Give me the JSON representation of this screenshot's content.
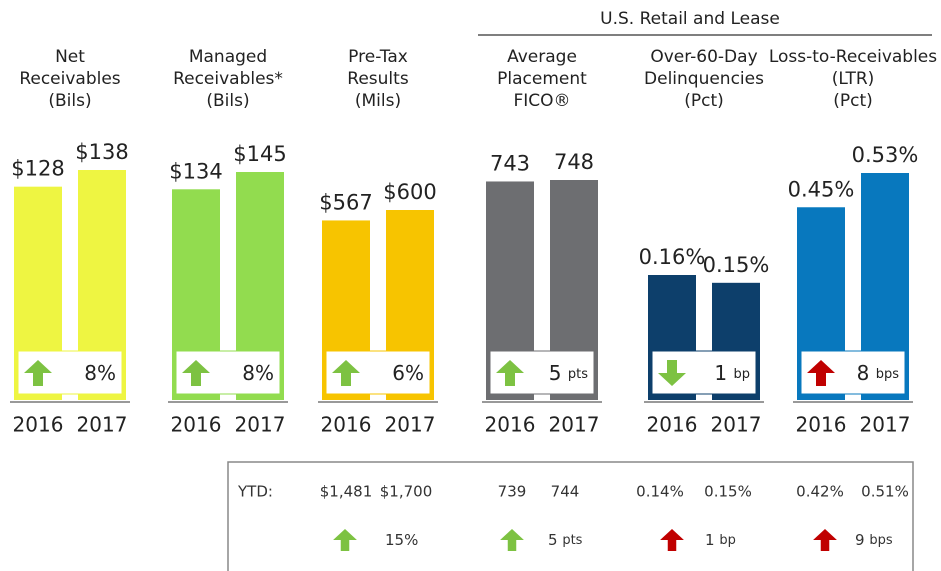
{
  "group_header": "U.S. Retail and Lease",
  "chart_data": [
    {
      "type": "bar",
      "title": [
        "Net",
        "Receivables",
        "(Bils)"
      ],
      "categories": [
        "2016",
        "2017"
      ],
      "values": [
        128,
        138
      ],
      "value_labels": [
        "$128",
        "$138"
      ],
      "color": "#eef542",
      "change": "8%",
      "arrow": "up",
      "arrow_color": "#7dc242"
    },
    {
      "type": "bar",
      "title": [
        "Managed",
        "Receivables*",
        "(Bils)"
      ],
      "categories": [
        "2016",
        "2017"
      ],
      "values": [
        134,
        145
      ],
      "value_labels": [
        "$134",
        "$145"
      ],
      "color": "#92dc4f",
      "change": "8%",
      "arrow": "up",
      "arrow_color": "#7dc242"
    },
    {
      "type": "bar",
      "title": [
        "Pre-Tax",
        "Results",
        "(Mils)"
      ],
      "categories": [
        "2016",
        "2017"
      ],
      "values": [
        567,
        600
      ],
      "value_labels": [
        "$567",
        "$600"
      ],
      "color": "#f7c400",
      "change": "6%",
      "arrow": "up",
      "arrow_color": "#7dc242"
    },
    {
      "type": "bar",
      "title": [
        "Average",
        "Placement",
        "FICO®"
      ],
      "categories": [
        "2016",
        "2017"
      ],
      "values": [
        743,
        748
      ],
      "color": "#6d6e71",
      "change": "5",
      "change_unit": "pts",
      "arrow": "up",
      "arrow_color": "#7dc242"
    },
    {
      "type": "bar",
      "title": [
        "Over-60-Day",
        "Delinquencies",
        "(Pct)"
      ],
      "categories": [
        "2016",
        "2017"
      ],
      "values": [
        0.16,
        0.15
      ],
      "value_labels": [
        "0.16%",
        "0.15%"
      ],
      "color": "#0d3f6b",
      "change": "1",
      "change_unit": "bp",
      "arrow": "down",
      "arrow_color": "#7dc242"
    },
    {
      "type": "bar",
      "title": [
        "Loss-to-Receivables",
        "(LTR)",
        "(Pct)"
      ],
      "categories": [
        "2016",
        "2017"
      ],
      "values": [
        0.45,
        0.53
      ],
      "value_labels": [
        "0.45%",
        "0.53%"
      ],
      "color": "#0878be",
      "change": "8",
      "change_unit": "bps",
      "arrow": "up",
      "arrow_color": "#c00000"
    }
  ],
  "ytd": {
    "label": "YTD:",
    "columns": [
      {
        "values": [
          "$1,481",
          "$1,700"
        ],
        "change": "15%",
        "arrow": "up",
        "arrow_color": "#7dc242"
      },
      {
        "values": [
          "739",
          "744"
        ],
        "change": "5",
        "change_unit": "pts",
        "arrow": "up",
        "arrow_color": "#7dc242"
      },
      {
        "values": [
          "0.14%",
          "0.15%"
        ],
        "change": "1",
        "change_unit": "bp",
        "arrow": "up",
        "arrow_color": "#c00000"
      },
      {
        "values": [
          "0.42%",
          "0.51%"
        ],
        "change": "9",
        "change_unit": "bps",
        "arrow": "up",
        "arrow_color": "#c00000"
      }
    ]
  }
}
